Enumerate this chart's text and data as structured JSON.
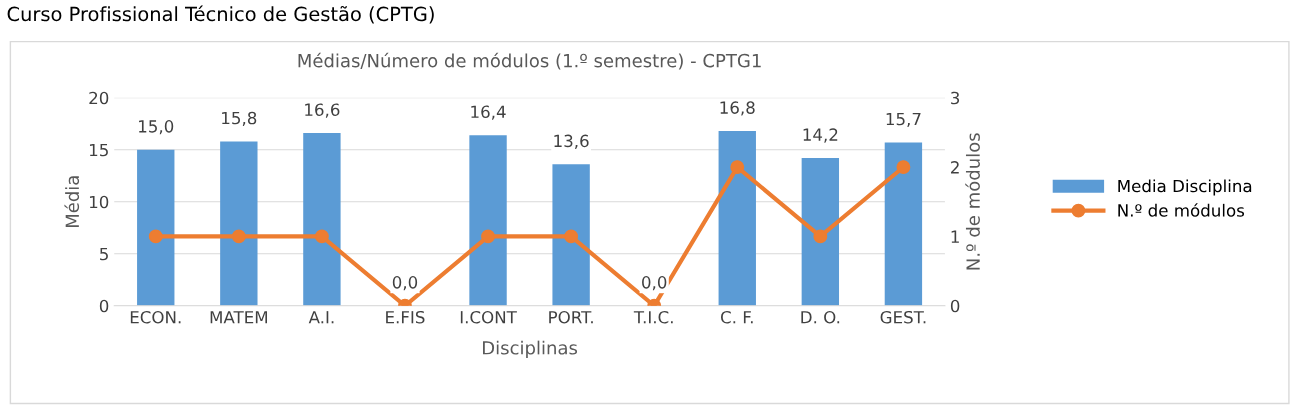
{
  "chart_data": {
    "type": "bar",
    "title": "Médias/Número de módulos (1.º semestre) - CPTG1",
    "xlabel": "Disciplinas",
    "ylabel": "Média",
    "y2label": "N.º de módulos",
    "annotations": [
      "Curso Profissional Técnico de Gestão (CPTG)"
    ],
    "categories": [
      "ECON.",
      "MATEM",
      "A.I.",
      "E.FIS",
      "I.CONT",
      "PORT.",
      "T.I.C.",
      "C. F.",
      "D. O.",
      "GEST."
    ],
    "series": [
      {
        "name": "Media Disciplina",
        "color": "#5b9bd5",
        "values": [
          15.0,
          15.8,
          16.6,
          0.0,
          16.4,
          13.6,
          0.0,
          16.8,
          14.2,
          15.7
        ],
        "value_labels": [
          "15,0",
          "15,8",
          "16,6",
          "0,0",
          "16,4",
          "13,6",
          "0,0",
          "16,8",
          "14,2",
          "15,7"
        ]
      },
      {
        "name": "N.º de módulos",
        "type": "line",
        "axis": "y2",
        "color": "#ed7d31",
        "values": [
          1,
          1,
          1,
          0,
          1,
          1,
          0,
          2,
          1,
          2
        ]
      }
    ],
    "ylim": [
      0,
      20
    ],
    "yticks": [
      0,
      5,
      10,
      15,
      20
    ],
    "y2lim": [
      0,
      3
    ],
    "y2ticks": [
      0,
      1,
      2,
      3
    ],
    "grid": "y",
    "legend": "right",
    "marker": "circle"
  }
}
